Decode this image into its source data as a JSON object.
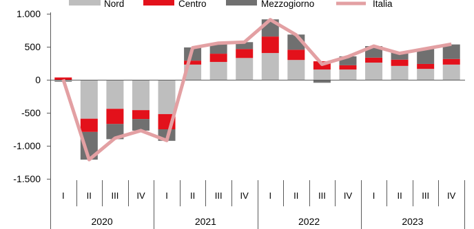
{
  "chart_data": {
    "type": "bar",
    "stacked": true,
    "legend": "top",
    "grid": false,
    "ylim": [
      -1500,
      1000
    ],
    "yticks": [
      1000,
      500,
      0,
      -500,
      -1000,
      -1500
    ],
    "ytick_labels": [
      "1.000",
      "500",
      "0",
      "-500",
      "-1.000",
      "-1.500"
    ],
    "years": [
      "2020",
      "2021",
      "2022",
      "2023"
    ],
    "categories": [
      "I",
      "II",
      "III",
      "IV",
      "I",
      "II",
      "III",
      "IV",
      "I",
      "II",
      "III",
      "IV",
      "I",
      "II",
      "III",
      "IV"
    ],
    "series": [
      {
        "name": "Nord",
        "type": "bar",
        "color": "#bebebe",
        "values": [
          -20,
          -590,
          -440,
          -460,
          -520,
          230,
          270,
          330,
          405,
          300,
          155,
          155,
          260,
          210,
          165,
          230
        ]
      },
      {
        "name": "Centro",
        "type": "bar",
        "color": "#e3111b",
        "values": [
          35,
          -200,
          -230,
          -135,
          -230,
          60,
          125,
          135,
          250,
          155,
          125,
          65,
          75,
          95,
          75,
          85
        ]
      },
      {
        "name": "Mezzogiorno",
        "type": "bar",
        "color": "#707070",
        "values": [
          -10,
          -420,
          -230,
          -175,
          -175,
          200,
          155,
          105,
          260,
          230,
          -45,
          135,
          175,
          115,
          230,
          220
        ]
      },
      {
        "name": "Italia",
        "type": "line",
        "color": "#e3a0a3",
        "values": [
          5,
          -1210,
          -885,
          -770,
          -920,
          485,
          555,
          570,
          910,
          680,
          235,
          350,
          510,
          400,
          470,
          540
        ]
      }
    ]
  }
}
